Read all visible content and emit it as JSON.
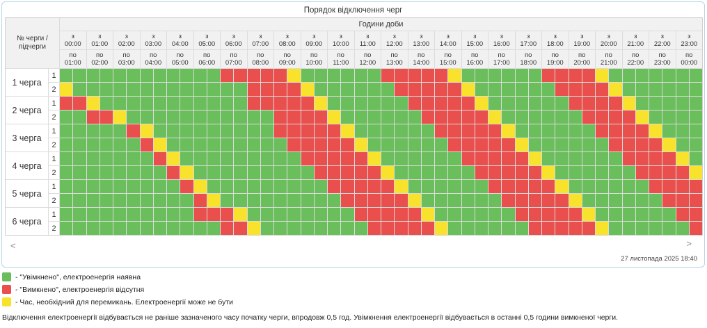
{
  "title": "Порядок відключення черг",
  "table": {
    "corner_label": "№ черги / підчерги",
    "day_header": "Години доби",
    "from_prefix": "з",
    "to_prefix": "по",
    "hours": [
      {
        "from": "00:00",
        "to": "01:00"
      },
      {
        "from": "01:00",
        "to": "02:00"
      },
      {
        "from": "02:00",
        "to": "03:00"
      },
      {
        "from": "03:00",
        "to": "04:00"
      },
      {
        "from": "04:00",
        "to": "05:00"
      },
      {
        "from": "05:00",
        "to": "06:00"
      },
      {
        "from": "06:00",
        "to": "07:00"
      },
      {
        "from": "07:00",
        "to": "08:00"
      },
      {
        "from": "08:00",
        "to": "09:00"
      },
      {
        "from": "09:00",
        "to": "10:00"
      },
      {
        "from": "10:00",
        "to": "11:00"
      },
      {
        "from": "11:00",
        "to": "12:00"
      },
      {
        "from": "12:00",
        "to": "13:00"
      },
      {
        "from": "13:00",
        "to": "14:00"
      },
      {
        "from": "14:00",
        "to": "15:00"
      },
      {
        "from": "15:00",
        "to": "16:00"
      },
      {
        "from": "16:00",
        "to": "17:00"
      },
      {
        "from": "17:00",
        "to": "18:00"
      },
      {
        "from": "18:00",
        "to": "19:00"
      },
      {
        "from": "19:00",
        "to": "20:00"
      },
      {
        "from": "20:00",
        "to": "21:00"
      },
      {
        "from": "21:00",
        "to": "22:00"
      },
      {
        "from": "22:00",
        "to": "23:00"
      },
      {
        "from": "23:00",
        "to": "00:00"
      }
    ]
  },
  "chart_data": {
    "type": "heatmap",
    "title": "Порядок відключення черг",
    "x_label": "Години доби",
    "x_slot_minutes": 30,
    "x_range": [
      "00:00",
      "24:00"
    ],
    "cell_codes": {
      "G": "on",
      "R": "off",
      "Y": "switching"
    },
    "rows": [
      {
        "queue": "1 черга",
        "sub": "1",
        "cells": "GGGGGGGGGGGGRRRRRYGGGGGGRRRRRYGGGGGGRRRRYGGGGGGG"
      },
      {
        "queue": "1 черга",
        "sub": "2",
        "cells": "YGGGGGGGGGGGGGRRRRYGGGGGGRRRRRYGGGGGGRRRRYGGGGGG"
      },
      {
        "queue": "2 черга",
        "sub": "1",
        "cells": "RRYGGGGGGGGGGGRRRRRYGGGGGGRRRRRYGGGGGGRRRRYGGGGG"
      },
      {
        "queue": "2 черга",
        "sub": "2",
        "cells": "GGRRYGGGGGGGGGGGRRRRYGGGGGGRRRRRYGGGGGGRRRRYGGGG"
      },
      {
        "queue": "3 черга",
        "sub": "1",
        "cells": "GGGGGRYGGGGGGGGGRRRRRYGGGGGGRRRRRYGGGGGGRRRRYGGG"
      },
      {
        "queue": "3 черга",
        "sub": "2",
        "cells": "GGGGGGRYGGGGGGGGGRRRRRYGGGGGGRRRRRYGGGGGGRRRRYGG"
      },
      {
        "queue": "4 черга",
        "sub": "1",
        "cells": "GGGGGGGRYGGGGGGGGGRRRRRYGGGGGGRRRRRYGGGGGGRRRRYG"
      },
      {
        "queue": "4 черга",
        "sub": "2",
        "cells": "GGGGGGGGRYGGGGGGGGGRRRRRYGGGGGGRRRRRYGGGGGGRRRRY"
      },
      {
        "queue": "5 черга",
        "sub": "1",
        "cells": "GGGGGGGGGRYGGGGGGGGGRRRRRYGGGGGGRRRRRYGGGGGGRRRR"
      },
      {
        "queue": "5 черга",
        "sub": "2",
        "cells": "GGGGGGGGGGRYGGGGGGGGGRRRRRYGGGGGGRRRRRYGGGGGGRRR"
      },
      {
        "queue": "6 черга",
        "sub": "1",
        "cells": "GGGGGGGGGGRRRYGGGGGGGGRRRRRYGGGGGGRRRRRYGGGGGGRR"
      },
      {
        "queue": "6 черга",
        "sub": "2",
        "cells": "GGGGGGGGGGGGRRYGGGGGGGGRRRRRYGGGGGGRRRRRYGGGGGGR"
      }
    ]
  },
  "colors": {
    "on": "#6BBE5C",
    "off": "#E94F4C",
    "switch": "#F9E22B"
  },
  "legend": [
    {
      "color": "#6BBE5C",
      "label": "- \"Увімкнено\", електроенергія наявна"
    },
    {
      "color": "#E94F4C",
      "label": "- \"Вимкнено\", електроенергія відсутня"
    },
    {
      "color": "#F9E22B",
      "label": "- Час, необхідний для перемикань. Електроенергії може не бути"
    }
  ],
  "footnote": "Відключення електроенергії відбувається не раніше зазначеного часу початку черги, впродовж 0,5 год. Увімкнення електроенергії відбувається в останні 0,5 години вимкненої черги.",
  "nav": {
    "prev": "<",
    "next": ">",
    "timestamp": "27 листопада 2025 18:40"
  }
}
